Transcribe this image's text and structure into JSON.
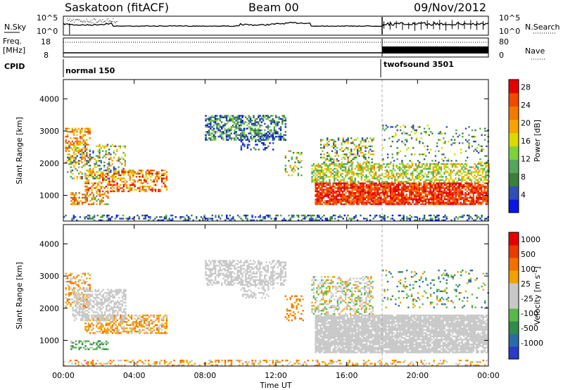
{
  "header": {
    "station": "Saskatoon (fitACF)",
    "beam": "Beam 00",
    "date": "09/Nov/2012"
  },
  "top_panel_labels": {
    "nsky": "N.Sky",
    "nsky_ticks": [
      "10^5",
      "10^0"
    ],
    "nsearch": "N.Search",
    "nsearch_ticks": [
      "10^5",
      "10^0"
    ],
    "freq": "Freq.",
    "freq_unit": "[MHz]",
    "freq_ticks": [
      "18",
      "8"
    ],
    "nave": "Nave",
    "nave_ticks": [
      "80",
      "0"
    ],
    "cpid": "CPID",
    "cpid_segments": [
      "normal 150",
      "twofsound 3501"
    ]
  },
  "colors": {
    "power_scale": [
      "#0a14e6",
      "#2f4fb5",
      "#3a7f3c",
      "#55a55a",
      "#7fd13c",
      "#d9d900",
      "#f7a400",
      "#f27a00",
      "#f04a00",
      "#e60000"
    ],
    "velocity_scale": [
      "#2b3ac7",
      "#2e6aa8",
      "#2f8c4a",
      "#57b84b",
      "#c8c8c8",
      "#c8c8c8",
      "#f2a000",
      "#f27000",
      "#ec3a00",
      "#e60000"
    ]
  },
  "chart_data": [
    {
      "type": "line",
      "title": "N.Sky / N.Search",
      "x": [
        "00:00",
        "24:00"
      ],
      "series": [
        {
          "name": "N.Sky",
          "values_description": ""
        },
        {
          "name": "N.Search",
          "values_description": ""
        }
      ],
      "ylim": [
        1,
        100000
      ],
      "yscale": "log"
    },
    {
      "type": "line",
      "title": "Freq. / Nave",
      "series": [
        {
          "name": "Freq.",
          "ylim": [
            8,
            18
          ],
          "values": [
            {
              "x": "00:00",
              "y": 16.6
            },
            {
              "x": "17:55",
              "y": 16.6
            },
            {
              "x": "24:00",
              "y": 16.6
            }
          ]
        },
        {
          "name": "Nave",
          "ylim": [
            0,
            80
          ],
          "values": [
            {
              "x": "00:00",
              "y": 8
            },
            {
              "x": "17:55",
              "y": 8
            },
            {
              "x": "17:56",
              "y": 30
            },
            {
              "x": "24:00",
              "y": 30
            }
          ]
        }
      ]
    },
    {
      "type": "heatmap",
      "title": "Power [dB]",
      "xlabel": "Time UT",
      "ylabel": "Slant Range [km]",
      "x_ticks": [
        "00:00",
        "04:00",
        "08:00",
        "12:00",
        "16:00",
        "20:00",
        "00:00"
      ],
      "y_ticks": [
        1000,
        2000,
        3000,
        4000
      ],
      "ylim": [
        200,
        4600
      ],
      "colorbar": {
        "label": "Power [dB]",
        "ticks": [
          4,
          8,
          12,
          16,
          20,
          24,
          28
        ],
        "range": [
          0,
          30
        ]
      }
    },
    {
      "type": "heatmap",
      "title": "Velocity [m s^-1]",
      "xlabel": "Time UT",
      "ylabel": "Slant Range [km]",
      "x_ticks": [
        "00:00",
        "04:00",
        "08:00",
        "12:00",
        "16:00",
        "20:00",
        "00:00"
      ],
      "y_ticks": [
        1000,
        2000,
        3000,
        4000
      ],
      "ylim": [
        200,
        4600
      ],
      "colorbar": {
        "label": "Velocity [m s^-1]",
        "ticks": [
          1000,
          500,
          100,
          25,
          -25,
          -100,
          -500,
          -1000
        ]
      }
    }
  ],
  "axes": {
    "x_ticks": [
      "00:00",
      "04:00",
      "08:00",
      "12:00",
      "16:00",
      "20:00",
      "00:00"
    ],
    "xlabel": "Time UT",
    "ylabel": "Slant Range [km]",
    "y_ticks": [
      "1000",
      "2000",
      "3000",
      "4000"
    ],
    "power_label": "Power [dB]",
    "power_ticks": [
      "4",
      "8",
      "12",
      "16",
      "20",
      "24",
      "28"
    ],
    "velocity_label": "Velocity [m s",
    "velocity_sup": "-1",
    "velocity_close": "]",
    "velocity_ticks": [
      "1000",
      "500",
      "100",
      "25",
      "-25",
      "-100",
      "-500",
      "-1000"
    ]
  }
}
